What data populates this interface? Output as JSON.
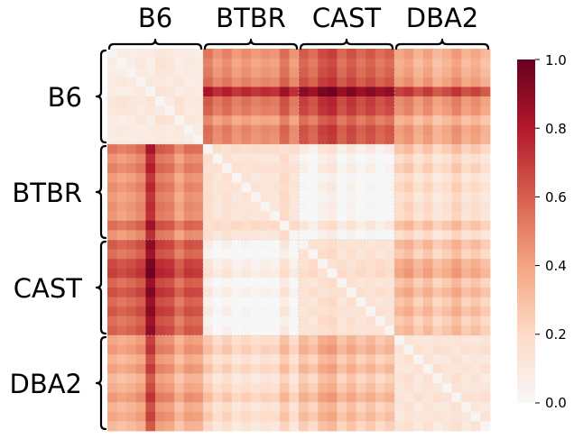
{
  "chart_data": {
    "type": "heatmap",
    "title": "",
    "xlabel": "",
    "ylabel": "",
    "groups": [
      "B6",
      "BTBR",
      "CAST",
      "DBA2"
    ],
    "samples_per_group": 10,
    "colormap": "RdBu_r (upper half: near-white to dark red)",
    "colorbar": {
      "range": [
        0.0,
        1.0
      ],
      "ticks": [
        "0.0",
        "0.2",
        "0.4",
        "0.6",
        "0.8",
        "1.0"
      ],
      "colors": [
        "#f7f7f7",
        "#fddbc7",
        "#f4a582",
        "#d6604d",
        "#b2182b",
        "#67001f"
      ]
    },
    "block_means": [
      [
        0.05,
        0.55,
        0.68,
        0.45
      ],
      [
        0.55,
        0.1,
        0.08,
        0.25
      ],
      [
        0.68,
        0.08,
        0.1,
        0.35
      ],
      [
        0.45,
        0.25,
        0.35,
        0.08
      ]
    ],
    "profiles": {
      "B6": [
        0.12,
        0.04,
        0.1,
        0.2,
        0.05,
        0.3,
        0.25,
        0.0,
        0.18,
        0.15
      ],
      "BTBR": [
        0.3,
        0.1,
        0.22,
        0.05,
        0.15,
        0.05,
        0.12,
        0.08,
        0.35,
        0.1
      ],
      "CAST": [
        0.18,
        0.05,
        0.28,
        0.35,
        0.1,
        0.25,
        0.08,
        0.2,
        0.05,
        0.15
      ],
      "DBA2": [
        0.2,
        0.3,
        0.1,
        0.25,
        0.05,
        0.15,
        0.3,
        0.1,
        0.2,
        0.05
      ]
    },
    "b6_hot_column": {
      "group": "B6",
      "index": 4,
      "extra": 0.32
    },
    "highlight": {
      "row_group": "B6",
      "row_index": 4,
      "col_group": "CAST",
      "value": 1.0
    }
  }
}
